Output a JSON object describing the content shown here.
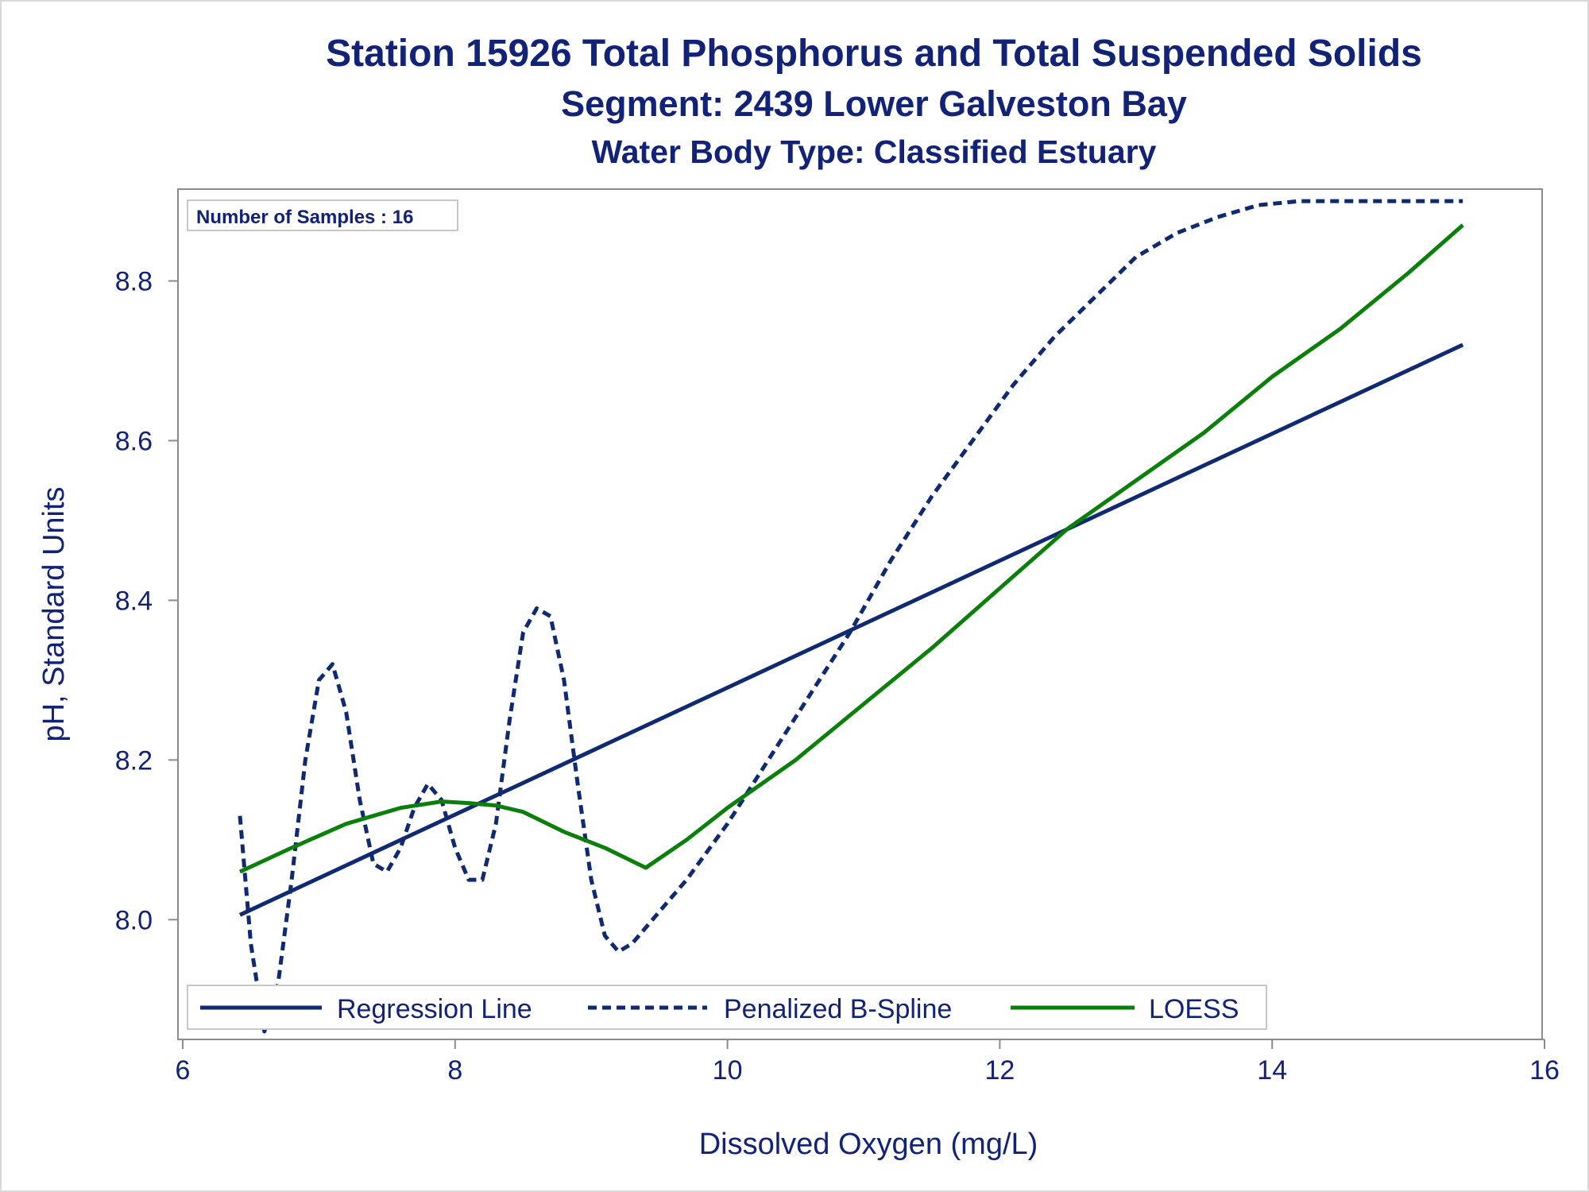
{
  "titles": {
    "line1": "Station 15926  Total Phosphorus and Total Suspended Solids",
    "line2": "Segment: 2439  Lower Galveston Bay",
    "line3": "Water Body Type: Classified Estuary"
  },
  "inset_label": "Number of Samples : 16",
  "colors": {
    "title": "#112277",
    "regression": "#102a72",
    "spline": "#102a72",
    "loess": "#0a800a",
    "axis": "#8c8c8c",
    "text": "#112277"
  },
  "chart_data": {
    "type": "line",
    "xlabel": "Dissolved Oxygen (mg/L)",
    "ylabel": "pH, Standard Units",
    "xlim": [
      6,
      16
    ],
    "ylim": [
      7.85,
      8.915
    ],
    "xticks": [
      6,
      8,
      10,
      12,
      14,
      16
    ],
    "yticks": [
      8.0,
      8.2,
      8.4,
      8.6,
      8.8
    ],
    "ytick_labels": [
      "8.0",
      "8.2",
      "8.4",
      "8.6",
      "8.8"
    ],
    "grid": false,
    "legend_position": "bottom-left inside",
    "series": [
      {
        "name": "Regression Line",
        "style": "solid",
        "x": [
          6.42,
          15.4
        ],
        "y": [
          8.006,
          8.72
        ]
      },
      {
        "name": "Penalized B-Spline",
        "style": "dashed",
        "x": [
          6.42,
          6.5,
          6.6,
          6.7,
          6.8,
          6.9,
          7.0,
          7.1,
          7.2,
          7.3,
          7.4,
          7.5,
          7.6,
          7.7,
          7.8,
          7.9,
          8.0,
          8.1,
          8.2,
          8.3,
          8.4,
          8.5,
          8.6,
          8.7,
          8.8,
          8.9,
          9.0,
          9.1,
          9.2,
          9.3,
          9.4,
          9.5,
          9.7,
          10.0,
          10.3,
          10.6,
          10.9,
          11.2,
          11.5,
          11.8,
          12.1,
          12.4,
          12.7,
          13.0,
          13.3,
          13.6,
          13.9,
          14.2,
          14.5,
          14.8,
          15.1,
          15.4
        ],
        "y": [
          8.13,
          7.97,
          7.86,
          7.92,
          8.05,
          8.2,
          8.3,
          8.32,
          8.26,
          8.15,
          8.07,
          8.06,
          8.09,
          8.14,
          8.17,
          8.15,
          8.09,
          8.05,
          8.05,
          8.12,
          8.25,
          8.36,
          8.39,
          8.38,
          8.3,
          8.17,
          8.05,
          7.98,
          7.96,
          7.97,
          7.99,
          8.01,
          8.05,
          8.12,
          8.2,
          8.28,
          8.36,
          8.45,
          8.53,
          8.6,
          8.67,
          8.73,
          8.78,
          8.83,
          8.86,
          8.88,
          8.895,
          8.9,
          8.9,
          8.9,
          8.9,
          8.9
        ]
      },
      {
        "name": "LOESS",
        "style": "solid",
        "x": [
          6.42,
          6.8,
          7.2,
          7.6,
          7.9,
          8.1,
          8.3,
          8.5,
          8.8,
          9.1,
          9.4,
          9.7,
          10.0,
          10.5,
          11.0,
          11.5,
          12.0,
          12.5,
          13.0,
          13.5,
          14.0,
          14.5,
          15.0,
          15.4
        ],
        "y": [
          8.06,
          8.09,
          8.12,
          8.14,
          8.148,
          8.146,
          8.143,
          8.135,
          8.11,
          8.09,
          8.065,
          8.1,
          8.14,
          8.2,
          8.27,
          8.34,
          8.415,
          8.49,
          8.55,
          8.61,
          8.68,
          8.74,
          8.81,
          8.87
        ]
      }
    ]
  }
}
